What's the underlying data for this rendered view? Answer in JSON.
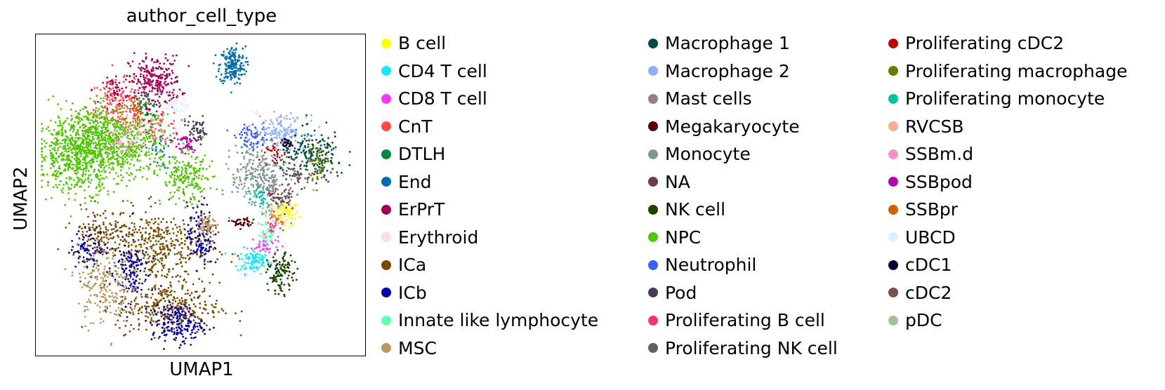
{
  "chart_data": {
    "type": "scatter",
    "title": "author_cell_type",
    "xlabel": "UMAP1",
    "ylabel": "UMAP2",
    "grid": false,
    "axis_ticks": false,
    "legend_placement": "right, 3 columns",
    "series": [
      {
        "name": "B cell",
        "color": "#ffff00",
        "clusters": [
          [
            0.765,
            0.44,
            0.02,
            0.02,
            80
          ]
        ]
      },
      {
        "name": "CD4 T cell",
        "color": "#1ce6ff",
        "clusters": [
          [
            0.665,
            0.29,
            0.025,
            0.02,
            120
          ]
        ]
      },
      {
        "name": "CD8 T cell",
        "color": "#ff34ff",
        "clusters": [
          [
            0.7,
            0.34,
            0.02,
            0.015,
            40
          ]
        ]
      },
      {
        "name": "CnT",
        "color": "#ff4a46",
        "clusters": [
          [
            0.25,
            0.78,
            0.05,
            0.04,
            200
          ],
          [
            0.38,
            0.72,
            0.03,
            0.03,
            60
          ]
        ]
      },
      {
        "name": "DTLH",
        "color": "#008941",
        "clusters": [
          [
            0.33,
            0.77,
            0.02,
            0.03,
            70
          ]
        ]
      },
      {
        "name": "End",
        "color": "#006fa6",
        "clusters": [
          [
            0.6,
            0.91,
            0.02,
            0.03,
            200
          ],
          [
            0.37,
            0.64,
            0.02,
            0.03,
            30
          ]
        ]
      },
      {
        "name": "ErPrT",
        "color": "#a30059",
        "clusters": [
          [
            0.36,
            0.86,
            0.04,
            0.04,
            250
          ],
          [
            0.24,
            0.83,
            0.02,
            0.02,
            40
          ]
        ]
      },
      {
        "name": "Erythroid",
        "color": "#ffdbe5",
        "clusters": [
          [
            0.67,
            0.76,
            0.005,
            0.005,
            5
          ]
        ]
      },
      {
        "name": "ICa",
        "color": "#7a4900",
        "clusters": [
          [
            0.38,
            0.33,
            0.08,
            0.06,
            400
          ],
          [
            0.4,
            0.14,
            0.08,
            0.04,
            320
          ],
          [
            0.2,
            0.38,
            0.05,
            0.04,
            160
          ]
        ]
      },
      {
        "name": "ICb",
        "color": "#0000a6",
        "clusters": [
          [
            0.43,
            0.09,
            0.04,
            0.03,
            180
          ],
          [
            0.28,
            0.26,
            0.03,
            0.05,
            130
          ],
          [
            0.5,
            0.37,
            0.02,
            0.05,
            120
          ],
          [
            0.16,
            0.33,
            0.03,
            0.03,
            80
          ]
        ]
      },
      {
        "name": "Innate like lymphocyte",
        "color": "#63ffac",
        "clusters": [
          [
            0.71,
            0.38,
            0.015,
            0.02,
            40
          ]
        ]
      },
      {
        "name": "MSC",
        "color": "#b79762",
        "clusters": [
          [
            0.2,
            0.21,
            0.04,
            0.06,
            200
          ],
          [
            0.52,
            0.4,
            0.015,
            0.02,
            60
          ]
        ]
      },
      {
        "name": "Macrophage 1",
        "color": "#004d43",
        "clusters": [
          [
            0.85,
            0.62,
            0.05,
            0.04,
            200
          ]
        ]
      },
      {
        "name": "Macrophage 2",
        "color": "#8fb0ff",
        "clusters": [
          [
            0.75,
            0.7,
            0.04,
            0.025,
            160
          ]
        ]
      },
      {
        "name": "Mast cells",
        "color": "#997d87",
        "clusters": [
          [
            0.72,
            0.52,
            0.015,
            0.015,
            30
          ]
        ]
      },
      {
        "name": "Megakaryocyte",
        "color": "#5a0007",
        "clusters": [
          [
            0.63,
            0.41,
            0.02,
            0.008,
            40
          ]
        ]
      },
      {
        "name": "Monocyte",
        "color": "#809693",
        "clusters": [
          [
            0.68,
            0.56,
            0.04,
            0.05,
            240
          ]
        ]
      },
      {
        "name": "NA",
        "color": "#6f3b49",
        "clusters": [
          [
            0.74,
            0.48,
            0.02,
            0.02,
            40
          ]
        ]
      },
      {
        "name": "NK cell",
        "color": "#1b4400",
        "clusters": [
          [
            0.75,
            0.25,
            0.02,
            0.03,
            120
          ]
        ]
      },
      {
        "name": "NPC",
        "color": "#4fc601",
        "clusters": [
          [
            0.12,
            0.63,
            0.06,
            0.06,
            700
          ],
          [
            0.27,
            0.65,
            0.07,
            0.05,
            400
          ],
          [
            0.46,
            0.55,
            0.04,
            0.04,
            200
          ],
          [
            0.19,
            0.71,
            0.04,
            0.04,
            200
          ]
        ]
      },
      {
        "name": "Neutrophil",
        "color": "#3b5dff",
        "clusters": [
          [
            0.66,
            0.68,
            0.025,
            0.02,
            70
          ]
        ]
      },
      {
        "name": "Pod",
        "color": "#4a3b53",
        "clusters": [
          [
            0.49,
            0.7,
            0.02,
            0.02,
            60
          ]
        ]
      },
      {
        "name": "Proliferating B cell",
        "color": "#ff2f80",
        "clusters": [
          [
            0.73,
            0.41,
            0.015,
            0.015,
            30
          ]
        ]
      },
      {
        "name": "Proliferating NK cell",
        "color": "#61615a",
        "clusters": [
          [
            0.77,
            0.5,
            0.015,
            0.015,
            20
          ]
        ]
      },
      {
        "name": "Proliferating cDC2",
        "color": "#ba0900",
        "clusters": [
          [
            0.73,
            0.63,
            0.015,
            0.02,
            30
          ]
        ]
      },
      {
        "name": "Proliferating macrophage",
        "color": "#6b7900",
        "clusters": [
          [
            0.86,
            0.6,
            0.02,
            0.03,
            60
          ]
        ]
      },
      {
        "name": "Proliferating monocyte",
        "color": "#00c2a0",
        "clusters": [
          [
            0.69,
            0.5,
            0.015,
            0.02,
            30
          ]
        ]
      },
      {
        "name": "RVCSB",
        "color": "#ffaa92",
        "clusters": [
          [
            0.3,
            0.73,
            0.03,
            0.02,
            40
          ]
        ]
      },
      {
        "name": "SSBm.d",
        "color": "#ff90c9",
        "clusters": [
          [
            0.26,
            0.67,
            0.03,
            0.02,
            40
          ]
        ]
      },
      {
        "name": "SSBpod",
        "color": "#b903aa",
        "clusters": [
          [
            0.45,
            0.66,
            0.02,
            0.02,
            40
          ]
        ]
      },
      {
        "name": "SSBpr",
        "color": "#d16100",
        "clusters": [
          [
            0.3,
            0.76,
            0.02,
            0.02,
            30
          ]
        ]
      },
      {
        "name": "UBCD",
        "color": "#ddefff",
        "clusters": [
          [
            0.43,
            0.78,
            0.015,
            0.015,
            30
          ]
        ]
      },
      {
        "name": "cDC1",
        "color": "#000035",
        "clusters": [
          [
            0.78,
            0.66,
            0.015,
            0.015,
            30
          ]
        ]
      },
      {
        "name": "cDC2",
        "color": "#7b4f4b",
        "clusters": [
          [
            0.8,
            0.56,
            0.02,
            0.02,
            40
          ]
        ]
      },
      {
        "name": "pDC",
        "color": "#a1c299",
        "clusters": [
          [
            0.72,
            0.45,
            0.015,
            0.015,
            30
          ]
        ]
      }
    ]
  }
}
